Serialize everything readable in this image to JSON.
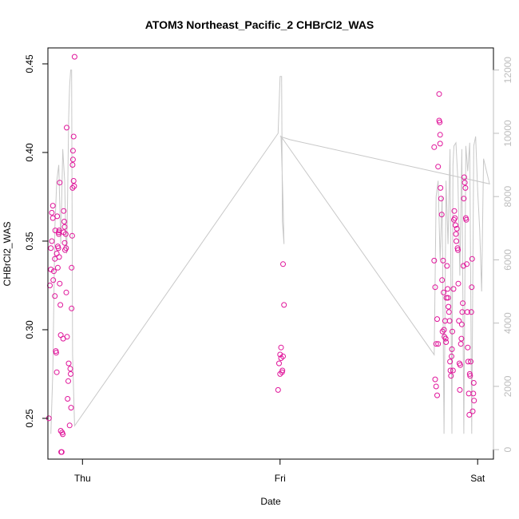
{
  "chart_data": {
    "type": "scatter",
    "title": "ATOM3 Northeast_Pacific_2 CHBrCl2_WAS",
    "xlabel": "Date",
    "ylabel": "CHBrCl2_WAS",
    "x_ticks": [
      "Thu",
      "Fri",
      "Sat"
    ],
    "y_ticks": [
      "0.25",
      "0.30",
      "0.35",
      "0.40",
      "0.45"
    ],
    "y2_ticks": [
      "0",
      "2000",
      "4000",
      "6000",
      "8000",
      "10000",
      "12000"
    ],
    "ylim": [
      0.227,
      0.459
    ],
    "y2lim": [
      -300,
      12700
    ],
    "xlim": [
      -0.175,
      2.08
    ],
    "grid": false,
    "colors": {
      "points": "#e0149a",
      "altitude": "#c8c8c8",
      "axis": "#000000",
      "right_axis": "#bdbdbd"
    },
    "series": [
      {
        "kind": "points",
        "x_unit": "days since Thursday 00:00",
        "points": [
          [
            -0.17,
            0.25
          ],
          [
            -0.165,
            0.325
          ],
          [
            -0.16,
            0.334
          ],
          [
            -0.16,
            0.346
          ],
          [
            -0.155,
            0.366
          ],
          [
            -0.155,
            0.35
          ],
          [
            -0.15,
            0.363
          ],
          [
            -0.15,
            0.37
          ],
          [
            -0.148,
            0.328
          ],
          [
            -0.145,
            0.333
          ],
          [
            -0.14,
            0.319
          ],
          [
            -0.14,
            0.34
          ],
          [
            -0.138,
            0.356
          ],
          [
            -0.135,
            0.288
          ],
          [
            -0.133,
            0.287
          ],
          [
            -0.13,
            0.276
          ],
          [
            -0.13,
            0.343
          ],
          [
            -0.128,
            0.364
          ],
          [
            -0.125,
            0.335
          ],
          [
            -0.125,
            0.347
          ],
          [
            -0.122,
            0.346
          ],
          [
            -0.12,
            0.355
          ],
          [
            -0.12,
            0.354
          ],
          [
            -0.118,
            0.356
          ],
          [
            -0.118,
            0.341
          ],
          [
            -0.115,
            0.383
          ],
          [
            -0.115,
            0.326
          ],
          [
            -0.112,
            0.314
          ],
          [
            -0.11,
            0.297
          ],
          [
            -0.11,
            0.243
          ],
          [
            -0.108,
            0.231
          ],
          [
            -0.105,
            0.231
          ],
          [
            -0.103,
            0.242
          ],
          [
            -0.1,
            0.241
          ],
          [
            -0.098,
            0.295
          ],
          [
            -0.095,
            0.355
          ],
          [
            -0.095,
            0.367
          ],
          [
            -0.092,
            0.361
          ],
          [
            -0.09,
            0.358
          ],
          [
            -0.09,
            0.349
          ],
          [
            -0.088,
            0.345
          ],
          [
            -0.085,
            0.354
          ],
          [
            -0.083,
            0.346
          ],
          [
            -0.082,
            0.321
          ],
          [
            -0.08,
            0.414
          ],
          [
            -0.078,
            0.296
          ],
          [
            -0.075,
            0.261
          ],
          [
            -0.072,
            0.271
          ],
          [
            -0.07,
            0.281
          ],
          [
            -0.065,
            0.246
          ],
          [
            -0.062,
            0.278
          ],
          [
            -0.06,
            0.275
          ],
          [
            -0.058,
            0.256
          ],
          [
            -0.055,
            0.312
          ],
          [
            -0.055,
            0.335
          ],
          [
            -0.052,
            0.353
          ],
          [
            -0.05,
            0.393
          ],
          [
            -0.05,
            0.38
          ],
          [
            -0.048,
            0.396
          ],
          [
            -0.048,
            0.401
          ],
          [
            -0.045,
            0.409
          ],
          [
            -0.045,
            0.384
          ],
          [
            -0.042,
            0.381
          ],
          [
            -0.04,
            0.454
          ],
          [
            0.99,
            0.266
          ],
          [
            0.995,
            0.281
          ],
          [
            1.0,
            0.286
          ],
          [
            1.0,
            0.275
          ],
          [
            1.005,
            0.29
          ],
          [
            1.005,
            0.284
          ],
          [
            1.01,
            0.276
          ],
          [
            1.012,
            0.277
          ],
          [
            1.015,
            0.285
          ],
          [
            1.015,
            0.337
          ],
          [
            1.02,
            0.314
          ],
          [
            1.78,
            0.403
          ],
          [
            1.78,
            0.339
          ],
          [
            1.785,
            0.324
          ],
          [
            1.785,
            0.272
          ],
          [
            1.79,
            0.292
          ],
          [
            1.79,
            0.268
          ],
          [
            1.795,
            0.263
          ],
          [
            1.795,
            0.306
          ],
          [
            1.8,
            0.292
          ],
          [
            1.8,
            0.392
          ],
          [
            1.805,
            0.433
          ],
          [
            1.805,
            0.418
          ],
          [
            1.808,
            0.417
          ],
          [
            1.81,
            0.41
          ],
          [
            1.81,
            0.405
          ],
          [
            1.812,
            0.38
          ],
          [
            1.815,
            0.374
          ],
          [
            1.818,
            0.365
          ],
          [
            1.82,
            0.328
          ],
          [
            1.822,
            0.299
          ],
          [
            1.825,
            0.339
          ],
          [
            1.828,
            0.321
          ],
          [
            1.83,
            0.3
          ],
          [
            1.832,
            0.296
          ],
          [
            1.835,
            0.305
          ],
          [
            1.838,
            0.295
          ],
          [
            1.84,
            0.293
          ],
          [
            1.842,
            0.318
          ],
          [
            1.845,
            0.336
          ],
          [
            1.848,
            0.323
          ],
          [
            1.85,
            0.318
          ],
          [
            1.852,
            0.313
          ],
          [
            1.855,
            0.31
          ],
          [
            1.858,
            0.305
          ],
          [
            1.86,
            0.282
          ],
          [
            1.862,
            0.277
          ],
          [
            1.865,
            0.274
          ],
          [
            1.868,
            0.285
          ],
          [
            1.87,
            0.289
          ],
          [
            1.872,
            0.299
          ],
          [
            1.875,
            0.277
          ],
          [
            1.878,
            0.323
          ],
          [
            1.88,
            0.362
          ],
          [
            1.882,
            0.367
          ],
          [
            1.885,
            0.363
          ],
          [
            1.888,
            0.359
          ],
          [
            1.89,
            0.354
          ],
          [
            1.892,
            0.35
          ],
          [
            1.895,
            0.357
          ],
          [
            1.898,
            0.346
          ],
          [
            1.9,
            0.345
          ],
          [
            1.902,
            0.326
          ],
          [
            1.905,
            0.305
          ],
          [
            1.908,
            0.281
          ],
          [
            1.91,
            0.266
          ],
          [
            1.912,
            0.28
          ],
          [
            1.915,
            0.292
          ],
          [
            1.918,
            0.295
          ],
          [
            1.92,
            0.303
          ],
          [
            1.922,
            0.31
          ],
          [
            1.925,
            0.315
          ],
          [
            1.928,
            0.336
          ],
          [
            1.93,
            0.374
          ],
          [
            1.932,
            0.386
          ],
          [
            1.935,
            0.383
          ],
          [
            1.938,
            0.38
          ],
          [
            1.94,
            0.363
          ],
          [
            1.942,
            0.362
          ],
          [
            1.945,
            0.337
          ],
          [
            1.948,
            0.31
          ],
          [
            1.95,
            0.29
          ],
          [
            1.952,
            0.282
          ],
          [
            1.955,
            0.264
          ],
          [
            1.958,
            0.252
          ],
          [
            1.96,
            0.275
          ],
          [
            1.962,
            0.274
          ],
          [
            1.965,
            0.282
          ],
          [
            1.968,
            0.31
          ],
          [
            1.97,
            0.324
          ],
          [
            1.972,
            0.34
          ],
          [
            1.975,
            0.254
          ],
          [
            1.978,
            0.264
          ],
          [
            1.98,
            0.27
          ],
          [
            1.982,
            0.26
          ]
        ]
      },
      {
        "kind": "line",
        "axis": "right",
        "x_unit": "days since Thursday 00:00",
        "points": [
          [
            -0.16,
            500
          ],
          [
            -0.15,
            2500
          ],
          [
            -0.14,
            7000
          ],
          [
            -0.13,
            8500
          ],
          [
            -0.12,
            9000
          ],
          [
            -0.11,
            6500
          ],
          [
            -0.1,
            9500
          ],
          [
            -0.09,
            8500
          ],
          [
            -0.085,
            6800
          ],
          [
            -0.08,
            6200
          ],
          [
            -0.075,
            8000
          ],
          [
            -0.07,
            10500
          ],
          [
            -0.065,
            11500
          ],
          [
            -0.06,
            12000
          ],
          [
            -0.055,
            12000
          ],
          [
            -0.05,
            3000
          ],
          [
            -0.04,
            750
          ],
          [
            0.99,
            10000
          ],
          [
            1.0,
            11800
          ],
          [
            1.008,
            11800
          ],
          [
            1.012,
            7200
          ],
          [
            1.02,
            6500
          ],
          [
            1.015,
            7800
          ],
          [
            1.005,
            9900
          ],
          [
            1.78,
            3000
          ],
          [
            1.79,
            8000
          ],
          [
            1.8,
            8500
          ],
          [
            1.81,
            6000
          ],
          [
            1.82,
            8000
          ],
          [
            1.83,
            500
          ],
          [
            1.84,
            8500
          ],
          [
            1.85,
            6500
          ],
          [
            1.86,
            9500
          ],
          [
            1.87,
            500
          ],
          [
            1.875,
            9000
          ],
          [
            1.88,
            9600
          ],
          [
            1.89,
            9700
          ],
          [
            1.9,
            8500
          ],
          [
            1.91,
            5500
          ],
          [
            1.92,
            9500
          ],
          [
            1.93,
            500
          ],
          [
            1.94,
            9600
          ],
          [
            1.95,
            8800
          ],
          [
            1.96,
            9700
          ],
          [
            1.97,
            500
          ],
          [
            1.98,
            9600
          ],
          [
            1.99,
            9900
          ],
          [
            2.0,
            8200
          ],
          [
            2.01,
            7000
          ],
          [
            2.02,
            5000
          ],
          [
            2.03,
            9200
          ],
          [
            2.06,
            8400
          ],
          [
            1.05,
            9800
          ],
          [
            1.0,
            9900
          ]
        ]
      }
    ]
  }
}
